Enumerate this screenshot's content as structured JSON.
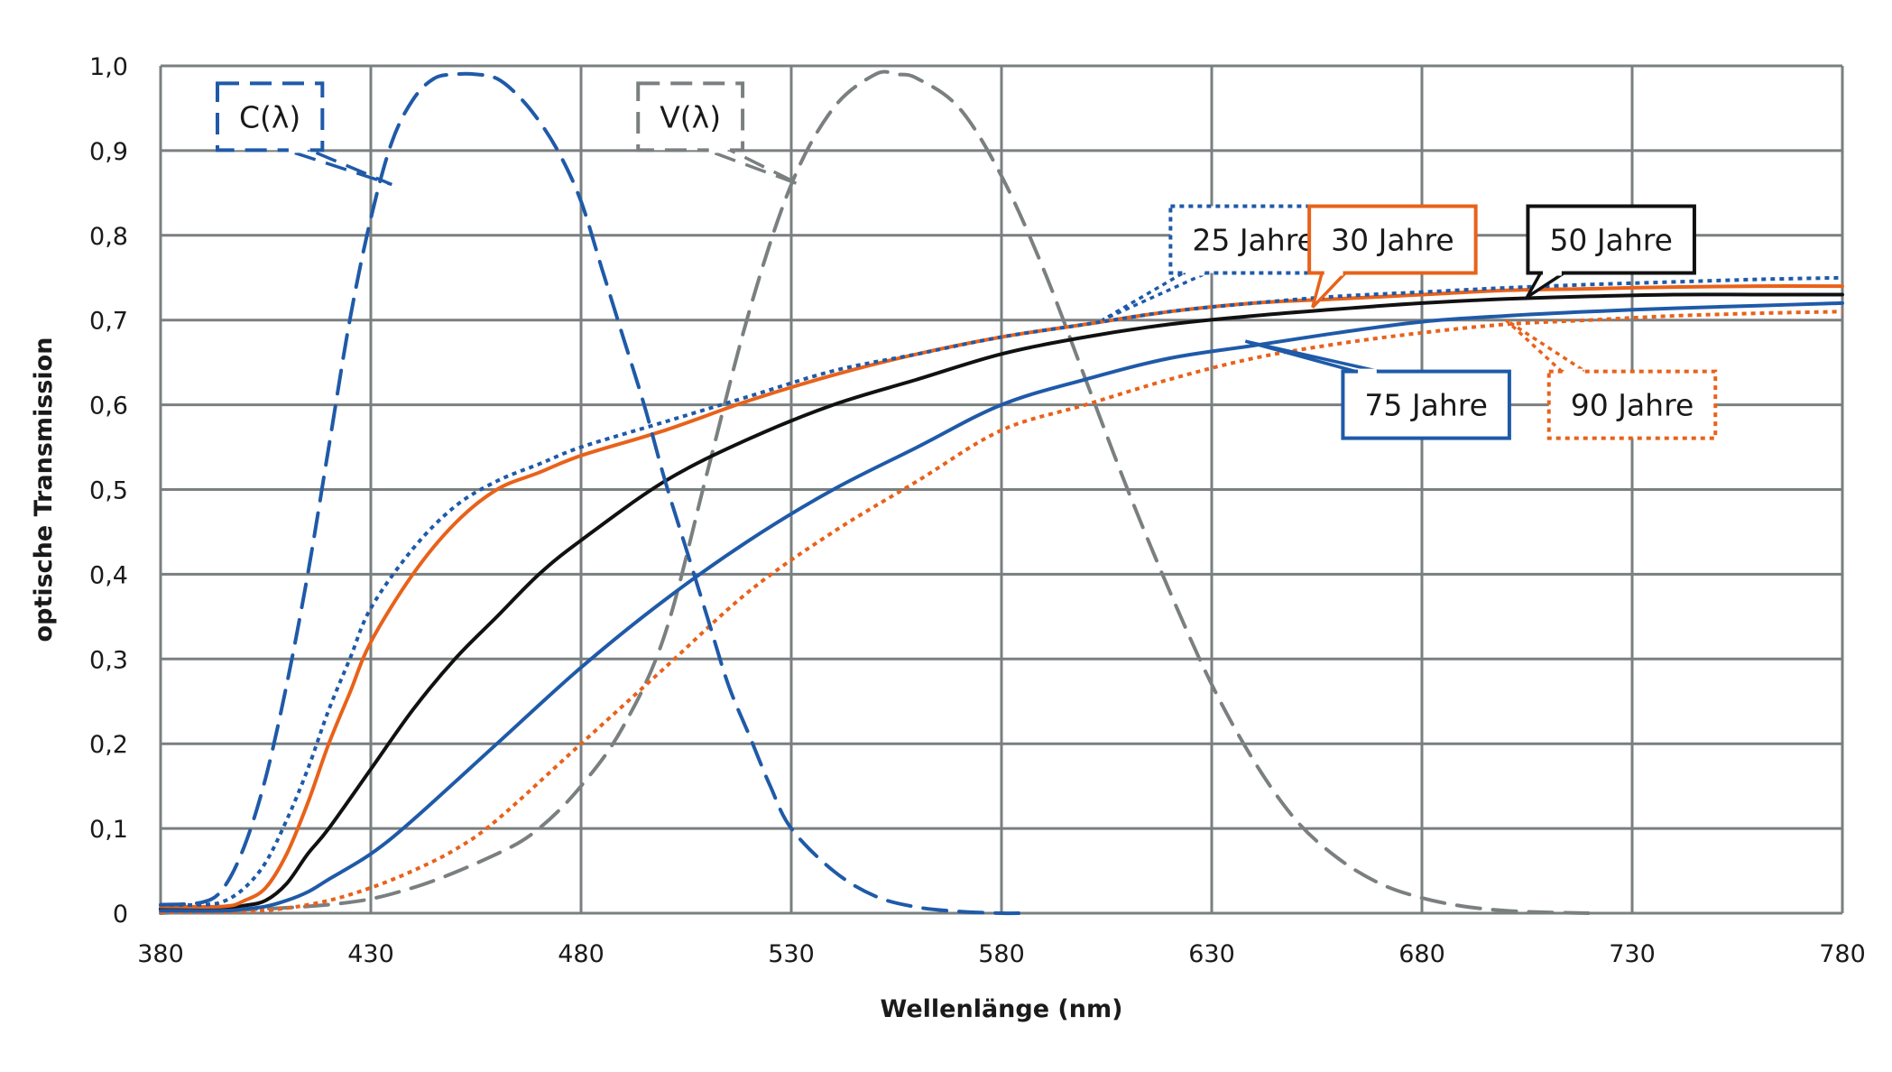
{
  "chart_data": {
    "type": "line",
    "xlabel": "Wellenlänge (nm)",
    "ylabel": "optische Transmission",
    "xlim": [
      380,
      780
    ],
    "ylim": [
      0,
      1.0
    ],
    "x_ticks": [
      380,
      430,
      480,
      530,
      580,
      630,
      680,
      730,
      780
    ],
    "x_tick_labels": [
      "380",
      "430",
      "480",
      "530",
      "580",
      "630",
      "680",
      "730",
      "780"
    ],
    "y_ticks": [
      0,
      0.1,
      0.2,
      0.3,
      0.4,
      0.5,
      0.6,
      0.7,
      0.8,
      0.9,
      1.0
    ],
    "y_tick_labels": [
      "0",
      "0,1",
      "0,2",
      "0,3",
      "0,4",
      "0,5",
      "0,6",
      "0,7",
      "0,8",
      "0,9",
      "1,0"
    ],
    "grid": true,
    "series": [
      {
        "name": "C(λ)",
        "color": "#1f5aa8",
        "style": "dashed",
        "label_at": [
          406,
          0.94
        ],
        "pointer_to": [
          435,
          0.86
        ],
        "x": [
          380,
          390,
          395,
          400,
          405,
          410,
          415,
          420,
          425,
          430,
          435,
          440,
          445,
          450,
          455,
          460,
          465,
          470,
          475,
          480,
          485,
          490,
          495,
          500,
          505,
          510,
          515,
          520,
          525,
          530,
          540,
          550,
          560,
          570,
          580,
          585
        ],
        "y": [
          0.01,
          0.013,
          0.03,
          0.08,
          0.16,
          0.27,
          0.4,
          0.55,
          0.7,
          0.82,
          0.91,
          0.96,
          0.985,
          0.99,
          0.99,
          0.985,
          0.965,
          0.935,
          0.895,
          0.84,
          0.76,
          0.68,
          0.6,
          0.51,
          0.43,
          0.35,
          0.27,
          0.21,
          0.15,
          0.1,
          0.05,
          0.02,
          0.007,
          0.002,
          0.0,
          0.0
        ]
      },
      {
        "name": "V(λ)",
        "color": "#7a7f80",
        "style": "dashed",
        "label_at": [
          506,
          0.94
        ],
        "pointer_to": [
          532,
          0.86
        ],
        "x": [
          380,
          420,
          440,
          460,
          470,
          480,
          490,
          500,
          510,
          520,
          530,
          540,
          550,
          555,
          560,
          570,
          580,
          590,
          600,
          610,
          620,
          630,
          640,
          650,
          660,
          670,
          680,
          690,
          700,
          710,
          720
        ],
        "y": [
          0.0,
          0.01,
          0.03,
          0.07,
          0.1,
          0.15,
          0.22,
          0.33,
          0.52,
          0.71,
          0.86,
          0.95,
          0.99,
          0.99,
          0.985,
          0.95,
          0.87,
          0.76,
          0.63,
          0.5,
          0.38,
          0.27,
          0.18,
          0.11,
          0.065,
          0.035,
          0.018,
          0.008,
          0.003,
          0.001,
          0.0
        ]
      },
      {
        "name": "25 Jahre",
        "color": "#1f5aa8",
        "style": "dotted",
        "label_at": [
          640,
          0.795
        ],
        "pointer_to": [
          604,
          0.7
        ],
        "x": [
          380,
          390,
          395,
          400,
          405,
          410,
          415,
          420,
          425,
          430,
          440,
          450,
          460,
          470,
          480,
          500,
          520,
          540,
          560,
          580,
          600,
          620,
          640,
          660,
          680,
          700,
          720,
          740,
          760,
          780
        ],
        "y": [
          0.01,
          0.01,
          0.014,
          0.03,
          0.06,
          0.11,
          0.17,
          0.24,
          0.3,
          0.36,
          0.43,
          0.48,
          0.51,
          0.53,
          0.55,
          0.58,
          0.61,
          0.64,
          0.66,
          0.68,
          0.695,
          0.71,
          0.72,
          0.728,
          0.733,
          0.738,
          0.742,
          0.745,
          0.748,
          0.75
        ]
      },
      {
        "name": "30 Jahre",
        "color": "#e8621a",
        "style": "solid",
        "label_at": [
          673,
          0.795
        ],
        "pointer_to": [
          654,
          0.715
        ],
        "x": [
          380,
          395,
          400,
          405,
          410,
          415,
          420,
          425,
          430,
          440,
          450,
          460,
          470,
          480,
          500,
          520,
          540,
          560,
          580,
          600,
          620,
          640,
          660,
          680,
          700,
          720,
          740,
          760,
          780
        ],
        "y": [
          0.008,
          0.008,
          0.015,
          0.03,
          0.07,
          0.13,
          0.2,
          0.26,
          0.32,
          0.4,
          0.46,
          0.5,
          0.52,
          0.54,
          0.57,
          0.605,
          0.635,
          0.66,
          0.68,
          0.695,
          0.71,
          0.72,
          0.725,
          0.73,
          0.735,
          0.737,
          0.739,
          0.74,
          0.74
        ]
      },
      {
        "name": "50 Jahre",
        "color": "#111111",
        "style": "solid",
        "label_at": [
          725,
          0.795
        ],
        "pointer_to": [
          705,
          0.727
        ],
        "x": [
          380,
          395,
          400,
          405,
          410,
          415,
          420,
          430,
          440,
          450,
          460,
          470,
          480,
          500,
          520,
          540,
          560,
          580,
          600,
          620,
          640,
          660,
          680,
          700,
          720,
          740,
          760,
          780
        ],
        "y": [
          0.005,
          0.006,
          0.009,
          0.015,
          0.035,
          0.07,
          0.1,
          0.17,
          0.24,
          0.3,
          0.35,
          0.4,
          0.44,
          0.51,
          0.56,
          0.6,
          0.63,
          0.66,
          0.68,
          0.695,
          0.705,
          0.713,
          0.72,
          0.725,
          0.728,
          0.73,
          0.73,
          0.73
        ]
      },
      {
        "name": "75 Jahre",
        "color": "#1f5aa8",
        "style": "solid",
        "label_at": [
          681,
          0.6
        ],
        "pointer_to": [
          638,
          0.675
        ],
        "x": [
          380,
          395,
          400,
          405,
          410,
          415,
          420,
          430,
          440,
          460,
          480,
          500,
          520,
          540,
          560,
          580,
          600,
          620,
          640,
          660,
          680,
          700,
          720,
          740,
          760,
          780
        ],
        "y": [
          0.003,
          0.003,
          0.005,
          0.008,
          0.015,
          0.025,
          0.04,
          0.07,
          0.11,
          0.2,
          0.29,
          0.37,
          0.44,
          0.5,
          0.55,
          0.6,
          0.63,
          0.655,
          0.67,
          0.685,
          0.698,
          0.705,
          0.71,
          0.714,
          0.717,
          0.72
        ]
      },
      {
        "name": "90 Jahre",
        "color": "#e8621a",
        "style": "dotted",
        "label_at": [
          730,
          0.6
        ],
        "pointer_to": [
          700,
          0.7
        ],
        "x": [
          380,
          400,
          410,
          420,
          430,
          440,
          450,
          460,
          480,
          500,
          520,
          540,
          560,
          580,
          600,
          620,
          640,
          660,
          680,
          700,
          720,
          740,
          760,
          780
        ],
        "y": [
          0.001,
          0.002,
          0.006,
          0.015,
          0.03,
          0.05,
          0.075,
          0.11,
          0.2,
          0.29,
          0.38,
          0.45,
          0.51,
          0.57,
          0.6,
          0.63,
          0.655,
          0.672,
          0.685,
          0.695,
          0.7,
          0.705,
          0.708,
          0.71
        ]
      }
    ]
  }
}
